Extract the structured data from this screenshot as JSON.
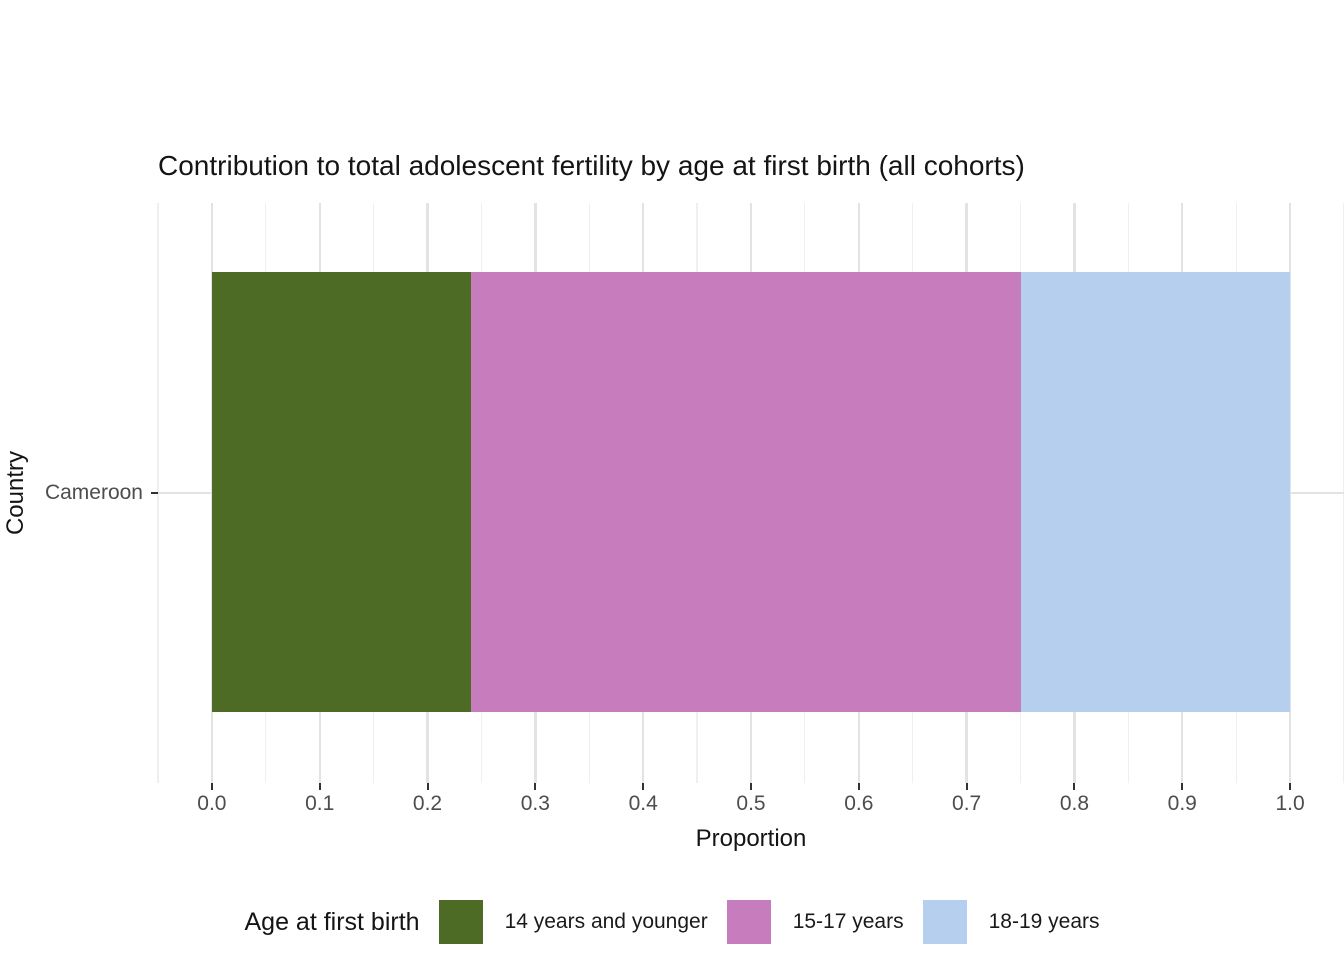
{
  "title": "Contribution to total adolescent fertility by age at first birth (all cohorts)",
  "axes": {
    "x_label": "Proportion",
    "y_label": "Country",
    "x_ticks": [
      "0.0",
      "0.1",
      "0.2",
      "0.3",
      "0.4",
      "0.5",
      "0.6",
      "0.7",
      "0.8",
      "0.9",
      "1.0"
    ],
    "y_ticks": [
      "Cameroon"
    ]
  },
  "legend": {
    "title": "Age at first birth",
    "entries": [
      {
        "label": "14 years and younger",
        "color": "#4d6b24"
      },
      {
        "label": "15-17 years",
        "color": "#c77cbe"
      },
      {
        "label": "18-19 years",
        "color": "#b6cfee"
      }
    ]
  },
  "chart_data": {
    "type": "bar",
    "orientation": "horizontal",
    "stacked": true,
    "title": "Contribution to total adolescent fertility by age at first birth (all cohorts)",
    "xlabel": "Proportion",
    "ylabel": "Country",
    "categories": [
      "Cameroon"
    ],
    "series": [
      {
        "name": "14 years and younger",
        "values": [
          0.24
        ],
        "color": "#4d6b24"
      },
      {
        "name": "15-17 years",
        "values": [
          0.51
        ],
        "color": "#c77cbe"
      },
      {
        "name": "18-19 years",
        "values": [
          0.25
        ],
        "color": "#b6cfee"
      }
    ],
    "xlim": [
      -0.05,
      1.05
    ],
    "x_major_ticks": [
      0.0,
      0.1,
      0.2,
      0.3,
      0.4,
      0.5,
      0.6,
      0.7,
      0.8,
      0.9,
      1.0
    ],
    "x_minor_ticks": [
      -0.05,
      0.05,
      0.15,
      0.25,
      0.35,
      0.45,
      0.55,
      0.65,
      0.75,
      0.85,
      0.95,
      1.05
    ],
    "grid": "vertical major+minor, horizontal major at category",
    "legend_position": "bottom",
    "legend_title": "Age at first birth"
  }
}
